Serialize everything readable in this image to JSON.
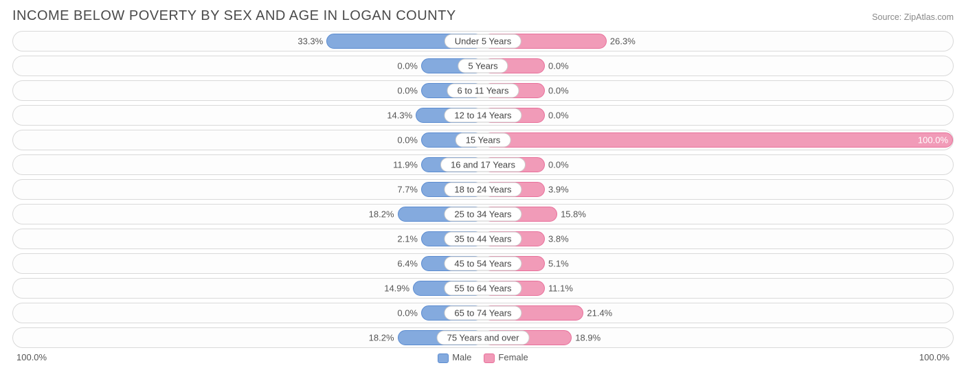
{
  "title": "INCOME BELOW POVERTY BY SEX AND AGE IN LOGAN COUNTY",
  "source": "Source: ZipAtlas.com",
  "chart": {
    "type": "diverging-bar",
    "male_color": "#84aade",
    "male_border": "#5a8bd0",
    "female_color": "#f19bb8",
    "female_border": "#e86f9a",
    "row_bg": "#fdfdfd",
    "row_border": "#d9d9d9",
    "label_fontsize": 13,
    "title_fontsize": 20,
    "title_color": "#4a4a4a",
    "text_color": "#555555",
    "xmax": 100.0,
    "min_bar_scale": 13.0,
    "rows": [
      {
        "age": "Under 5 Years",
        "male": 33.3,
        "female": 26.3
      },
      {
        "age": "5 Years",
        "male": 0.0,
        "female": 0.0
      },
      {
        "age": "6 to 11 Years",
        "male": 0.0,
        "female": 0.0
      },
      {
        "age": "12 to 14 Years",
        "male": 14.3,
        "female": 0.0
      },
      {
        "age": "15 Years",
        "male": 0.0,
        "female": 100.0
      },
      {
        "age": "16 and 17 Years",
        "male": 11.9,
        "female": 0.0
      },
      {
        "age": "18 to 24 Years",
        "male": 7.7,
        "female": 3.9
      },
      {
        "age": "25 to 34 Years",
        "male": 18.2,
        "female": 15.8
      },
      {
        "age": "35 to 44 Years",
        "male": 2.1,
        "female": 3.8
      },
      {
        "age": "45 to 54 Years",
        "male": 6.4,
        "female": 5.1
      },
      {
        "age": "55 to 64 Years",
        "male": 14.9,
        "female": 11.1
      },
      {
        "age": "65 to 74 Years",
        "male": 0.0,
        "female": 21.4
      },
      {
        "age": "75 Years and over",
        "male": 18.2,
        "female": 18.9
      }
    ]
  },
  "axis": {
    "left": "100.0%",
    "right": "100.0%"
  },
  "legend": {
    "male": "Male",
    "female": "Female"
  }
}
